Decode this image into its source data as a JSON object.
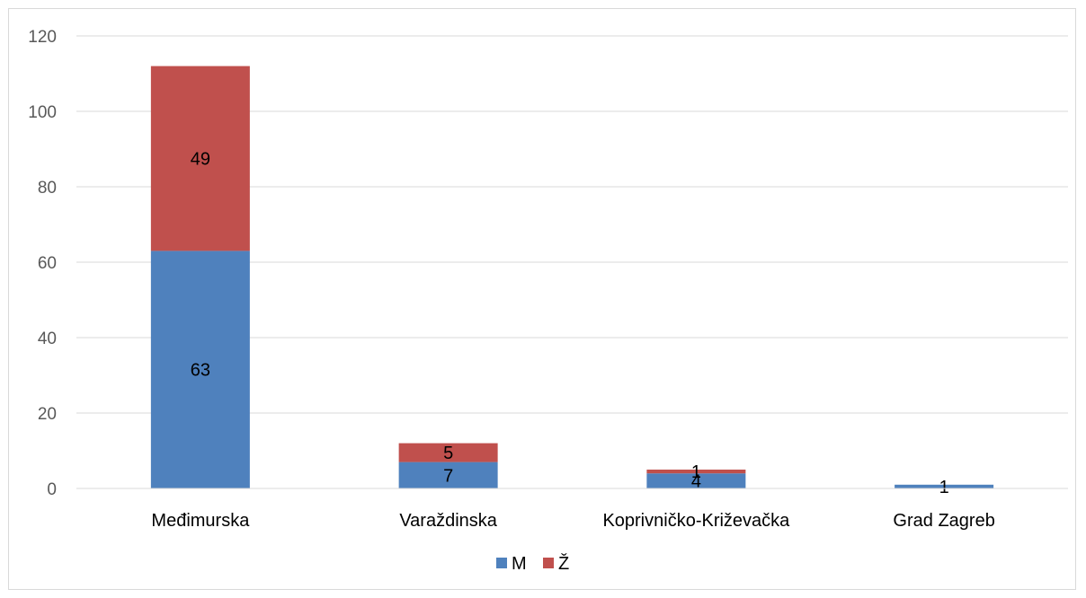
{
  "chart_data": {
    "type": "bar",
    "stacked": true,
    "categories": [
      "Međimurska",
      "Varaždinska",
      "Koprivničko-Križevačka",
      "Grad Zagreb"
    ],
    "series": [
      {
        "name": "M",
        "color": "#4f81bd",
        "values": [
          63,
          7,
          4,
          1
        ]
      },
      {
        "name": "Ž",
        "color": "#c0504d",
        "values": [
          49,
          5,
          1,
          0
        ]
      }
    ],
    "data_labels": [
      [
        "63",
        "7",
        "4",
        "1"
      ],
      [
        "49",
        "5",
        "1",
        ""
      ]
    ],
    "yticks": [
      "0",
      "20",
      "40",
      "60",
      "80",
      "100",
      "120"
    ],
    "ylim": [
      0,
      120
    ],
    "grid": true,
    "legend_position": "bottom"
  }
}
